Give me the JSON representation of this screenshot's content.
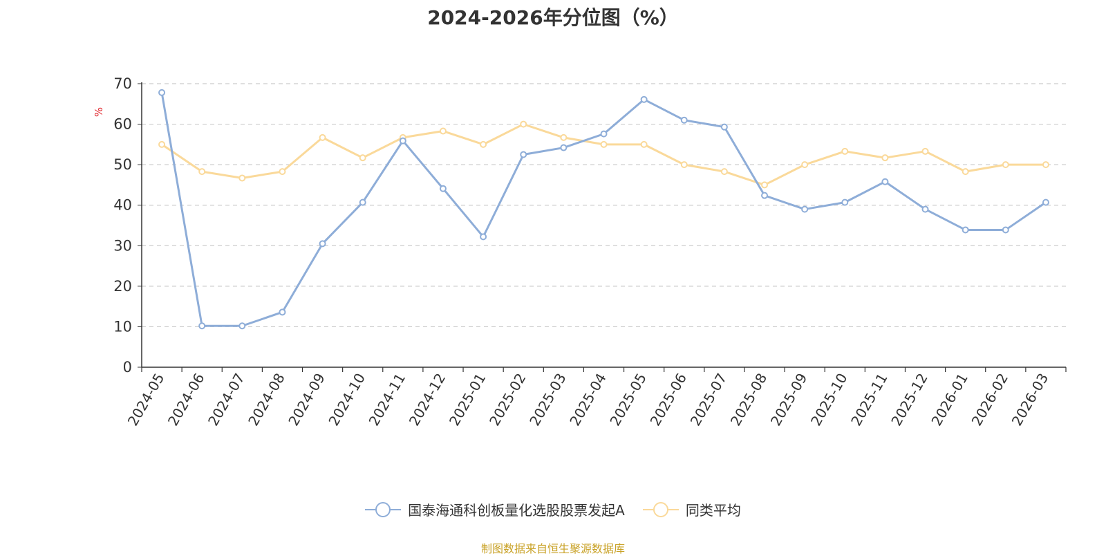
{
  "title": "2024-2026年分位图（%）",
  "source_note": "制图数据来自恒生聚源数据库",
  "colors": {
    "series_1": "#8eadd8",
    "series_2": "#fad99a",
    "axis": "#333333",
    "grid": "#cccccc",
    "unit_label": "#e0262d",
    "source": "#c9a227"
  },
  "chart_data": {
    "type": "line",
    "title": "2024-2026年分位图（%）",
    "ylabel": "%",
    "xlabel": "",
    "ylim": [
      0,
      70
    ],
    "yticks": [
      "0",
      "10",
      "20",
      "30",
      "40",
      "50",
      "60",
      "70"
    ],
    "grid": "horizontal-dashed",
    "legend_position": "bottom-center",
    "categories": [
      "2024-05",
      "2024-06",
      "2024-07",
      "2024-08",
      "2024-09",
      "2024-10",
      "2024-11",
      "2024-12",
      "2025-01",
      "2025-02",
      "2025-03",
      "2025-04",
      "2025-05",
      "2025-06",
      "2025-07",
      "2025-08",
      "2025-09",
      "2025-10",
      "2025-11",
      "2025-12",
      "2026-01",
      "2026-02",
      "2026-03"
    ],
    "series": [
      {
        "name": "国泰海通科创板量化选股股票发起A",
        "values": [
          67.8,
          10.2,
          10.2,
          13.6,
          30.5,
          40.7,
          55.9,
          44.1,
          32.2,
          52.5,
          54.2,
          57.6,
          66.1,
          61.0,
          59.3,
          42.4,
          39.0,
          40.7,
          45.8,
          39.0,
          33.9,
          33.9,
          40.7
        ]
      },
      {
        "name": "同类平均",
        "values": [
          55.0,
          48.3,
          46.7,
          48.3,
          56.7,
          51.7,
          56.7,
          58.3,
          55.0,
          60.0,
          56.7,
          55.0,
          55.0,
          50.0,
          48.3,
          45.0,
          50.0,
          53.3,
          51.7,
          53.3,
          48.3,
          50.0,
          50.0
        ]
      }
    ]
  }
}
